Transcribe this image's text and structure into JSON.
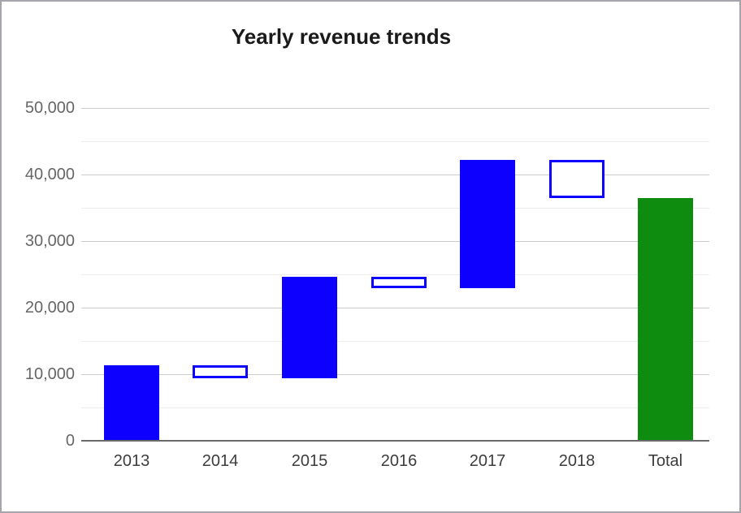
{
  "frame": {
    "background": "#ffffff",
    "border_color": "#a5a5ac"
  },
  "chart_data": {
    "type": "bar",
    "subtype": "waterfall",
    "title": "Yearly revenue trends",
    "xlabel": "",
    "ylabel": "",
    "legend": "none",
    "grid": true,
    "categories": [
      "2013",
      "2014",
      "2015",
      "2016",
      "2017",
      "2018",
      "Total"
    ],
    "bars": [
      {
        "category": "2013",
        "start": 0,
        "end": 11300,
        "change": 11300,
        "kind": "increase"
      },
      {
        "category": "2014",
        "start": 11300,
        "end": 9300,
        "change": -2000,
        "kind": "decrease"
      },
      {
        "category": "2015",
        "start": 9300,
        "end": 24600,
        "change": 15300,
        "kind": "increase"
      },
      {
        "category": "2016",
        "start": 24600,
        "end": 22900,
        "change": -1700,
        "kind": "decrease"
      },
      {
        "category": "2017",
        "start": 22900,
        "end": 42200,
        "change": 19300,
        "kind": "increase"
      },
      {
        "category": "2018",
        "start": 42200,
        "end": 36500,
        "change": -5700,
        "kind": "decrease"
      },
      {
        "category": "Total",
        "start": 0,
        "end": 36500,
        "change": 36500,
        "kind": "total"
      }
    ],
    "y_axis": {
      "min": 0,
      "max": 50000,
      "major_step": 10000,
      "minor_step": 5000,
      "tick_labels": [
        "0",
        "10,000",
        "20,000",
        "30,000",
        "40,000",
        "50,000"
      ]
    },
    "x_axis": {
      "labels": [
        "2013",
        "2014",
        "2015",
        "2016",
        "2017",
        "2018",
        "Total"
      ]
    },
    "colors": {
      "increase_fill": "#0d00ff",
      "decrease_fill": "#ffffff",
      "decrease_border": "#0d00ff",
      "total_fill": "#0e8c10",
      "grid_major": "#cccccc",
      "grid_minor": "#ececec",
      "axis_baseline": "#6b6b6b",
      "y_label": "#666666",
      "x_label": "#3d3d3d",
      "title": "#1a1a1a"
    }
  }
}
